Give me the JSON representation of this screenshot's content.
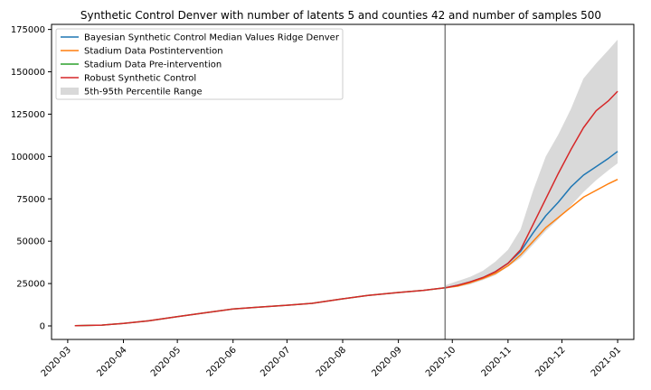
{
  "chart_data": {
    "type": "line",
    "title": "Synthetic Control Denver with number of latents 5 and counties 42 and number of samples 500",
    "xlabel": "",
    "ylabel": "",
    "x_range": [
      "2020-02-21",
      "2021-01-10"
    ],
    "ylim": [
      -8000,
      178000
    ],
    "y_ticks": [
      0,
      25000,
      50000,
      75000,
      100000,
      125000,
      150000,
      175000
    ],
    "x_ticks": [
      {
        "date": "2020-03-01",
        "label": "2020-03"
      },
      {
        "date": "2020-04-01",
        "label": "2020-04"
      },
      {
        "date": "2020-05-01",
        "label": "2020-05"
      },
      {
        "date": "2020-06-01",
        "label": "2020-06"
      },
      {
        "date": "2020-07-01",
        "label": "2020-07"
      },
      {
        "date": "2020-08-01",
        "label": "2020-08"
      },
      {
        "date": "2020-09-01",
        "label": "2020-09"
      },
      {
        "date": "2020-10-01",
        "label": "2020-10"
      },
      {
        "date": "2020-11-01",
        "label": "2020-11"
      },
      {
        "date": "2020-12-01",
        "label": "2020-12"
      },
      {
        "date": "2021-01-01",
        "label": "2021-01"
      }
    ],
    "intervention_date": "2020-09-27",
    "grid": false,
    "legend_position": "top-left",
    "series": [
      {
        "name": "Bayesian Synthetic Control Median Values Ridge Denver",
        "color": "#1f77b4",
        "points": [
          [
            "2020-09-27",
            22500
          ],
          [
            "2020-10-04",
            24000
          ],
          [
            "2020-10-11",
            26000
          ],
          [
            "2020-10-18",
            28500
          ],
          [
            "2020-10-25",
            32000
          ],
          [
            "2020-11-01",
            37000
          ],
          [
            "2020-11-08",
            44000
          ],
          [
            "2020-11-15",
            55000
          ],
          [
            "2020-11-22",
            65000
          ],
          [
            "2020-11-29",
            73000
          ],
          [
            "2020-12-06",
            82000
          ],
          [
            "2020-12-13",
            89000
          ],
          [
            "2020-12-20",
            94000
          ],
          [
            "2020-12-27",
            99000
          ],
          [
            "2021-01-01",
            103000
          ]
        ]
      },
      {
        "name": "Stadium Data Postintervention",
        "color": "#ff7f0e",
        "points": [
          [
            "2020-09-27",
            22500
          ],
          [
            "2020-10-04",
            23500
          ],
          [
            "2020-10-11",
            25500
          ],
          [
            "2020-10-18",
            28000
          ],
          [
            "2020-10-25",
            31000
          ],
          [
            "2020-11-01",
            35500
          ],
          [
            "2020-11-08",
            42000
          ],
          [
            "2020-11-15",
            50000
          ],
          [
            "2020-11-22",
            58000
          ],
          [
            "2020-11-29",
            64000
          ],
          [
            "2020-12-06",
            70000
          ],
          [
            "2020-12-13",
            76000
          ],
          [
            "2020-12-20",
            80000
          ],
          [
            "2020-12-27",
            84000
          ],
          [
            "2021-01-01",
            86500
          ]
        ]
      },
      {
        "name": "Stadium Data Pre-intervention",
        "color": "#2ca02c",
        "points": [
          [
            "2020-03-05",
            100
          ],
          [
            "2020-03-20",
            500
          ],
          [
            "2020-04-01",
            1500
          ],
          [
            "2020-04-15",
            3000
          ],
          [
            "2020-05-01",
            5500
          ],
          [
            "2020-05-15",
            7500
          ],
          [
            "2020-06-01",
            10000
          ],
          [
            "2020-06-15",
            11000
          ],
          [
            "2020-07-01",
            12200
          ],
          [
            "2020-07-15",
            13300
          ],
          [
            "2020-08-01",
            16000
          ],
          [
            "2020-08-15",
            18000
          ],
          [
            "2020-09-01",
            19700
          ],
          [
            "2020-09-15",
            21000
          ],
          [
            "2020-09-27",
            22500
          ]
        ]
      },
      {
        "name": "Robust Synthetic Control",
        "color": "#d62728",
        "points": [
          [
            "2020-03-05",
            100
          ],
          [
            "2020-03-20",
            500
          ],
          [
            "2020-04-01",
            1500
          ],
          [
            "2020-04-15",
            3000
          ],
          [
            "2020-05-01",
            5500
          ],
          [
            "2020-05-15",
            7500
          ],
          [
            "2020-06-01",
            10000
          ],
          [
            "2020-06-15",
            11000
          ],
          [
            "2020-07-01",
            12200
          ],
          [
            "2020-07-15",
            13300
          ],
          [
            "2020-08-01",
            16000
          ],
          [
            "2020-08-15",
            18000
          ],
          [
            "2020-09-01",
            19700
          ],
          [
            "2020-09-15",
            21000
          ],
          [
            "2020-09-27",
            22500
          ],
          [
            "2020-10-04",
            24000
          ],
          [
            "2020-10-11",
            26000
          ],
          [
            "2020-10-18",
            28500
          ],
          [
            "2020-10-25",
            32000
          ],
          [
            "2020-11-01",
            37000
          ],
          [
            "2020-11-08",
            45000
          ],
          [
            "2020-11-15",
            60000
          ],
          [
            "2020-11-22",
            75000
          ],
          [
            "2020-11-29",
            90000
          ],
          [
            "2020-12-06",
            104000
          ],
          [
            "2020-12-13",
            117000
          ],
          [
            "2020-12-20",
            127000
          ],
          [
            "2020-12-27",
            133000
          ],
          [
            "2021-01-01",
            138500
          ]
        ]
      }
    ],
    "band": {
      "name": "5th-95th Percentile Range",
      "color": "#bfbfbf",
      "points": [
        [
          "2020-09-27",
          22000,
          24000
        ],
        [
          "2020-10-04",
          23000,
          26500
        ],
        [
          "2020-10-11",
          24500,
          29000
        ],
        [
          "2020-10-18",
          27000,
          32500
        ],
        [
          "2020-10-25",
          30000,
          38000
        ],
        [
          "2020-11-01",
          35000,
          45000
        ],
        [
          "2020-11-08",
          40000,
          57000
        ],
        [
          "2020-11-15",
          48000,
          80000
        ],
        [
          "2020-11-22",
          56000,
          100000
        ],
        [
          "2020-11-29",
          63000,
          113000
        ],
        [
          "2020-12-06",
          71000,
          128000
        ],
        [
          "2020-12-13",
          79000,
          146000
        ],
        [
          "2020-12-20",
          86000,
          155000
        ],
        [
          "2020-12-27",
          92000,
          163000
        ],
        [
          "2021-01-01",
          96000,
          169000
        ]
      ]
    }
  }
}
